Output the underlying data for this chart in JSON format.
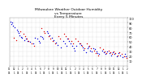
{
  "title": "Milwaukee Weather Outdoor Humidity\nvs Temperature\nEvery 5 Minutes",
  "title_fontsize": 3.2,
  "background_color": "#ffffff",
  "grid_color": "#bbbbbb",
  "blue_color": "#0000dd",
  "red_color": "#dd0000",
  "xlim": [
    0,
    130
  ],
  "ylim": [
    0,
    100
  ],
  "yticks_right": [
    10,
    20,
    30,
    40,
    50,
    60,
    70,
    80,
    90,
    100
  ],
  "ytick_fontsize": 2.5,
  "xtick_fontsize": 2.0,
  "blue_x": [
    2,
    4,
    6,
    8,
    9,
    10,
    11,
    13,
    1,
    3,
    14,
    16,
    18,
    20,
    23,
    26,
    28,
    31,
    32,
    33,
    34,
    36,
    37,
    41,
    42,
    44,
    47,
    49,
    51,
    53,
    57,
    59,
    61,
    63,
    64,
    66,
    67,
    69,
    71,
    72,
    74,
    77,
    79,
    81,
    82,
    84,
    86,
    87,
    89,
    91,
    92,
    94,
    96,
    97,
    99,
    102,
    104,
    106,
    108,
    110,
    112,
    114,
    116,
    118,
    120,
    122,
    125,
    127,
    128
  ],
  "blue_y": [
    88,
    84,
    80,
    76,
    72,
    68,
    64,
    60,
    92,
    90,
    58,
    54,
    56,
    52,
    50,
    47,
    58,
    56,
    52,
    49,
    62,
    60,
    57,
    72,
    68,
    63,
    58,
    53,
    48,
    43,
    38,
    52,
    47,
    42,
    57,
    52,
    47,
    42,
    37,
    32,
    42,
    47,
    43,
    38,
    33,
    28,
    37,
    40,
    32,
    30,
    37,
    34,
    30,
    27,
    24,
    32,
    28,
    25,
    30,
    27,
    22,
    28,
    25,
    20,
    26,
    22,
    18,
    24,
    20
  ],
  "red_x": [
    5,
    7,
    12,
    15,
    17,
    19,
    21,
    24,
    27,
    35,
    38,
    39,
    43,
    45,
    48,
    50,
    54,
    56,
    60,
    62,
    65,
    68,
    70,
    73,
    75,
    78,
    80,
    83,
    85,
    88,
    90,
    93,
    95,
    98,
    100,
    103,
    105,
    107,
    109,
    111,
    113,
    115,
    117,
    119,
    121,
    124,
    126,
    129
  ],
  "red_y": [
    58,
    53,
    72,
    67,
    62,
    57,
    52,
    47,
    42,
    78,
    72,
    68,
    62,
    57,
    52,
    47,
    62,
    57,
    67,
    62,
    57,
    52,
    47,
    57,
    52,
    47,
    42,
    37,
    47,
    42,
    37,
    32,
    27,
    22,
    38,
    34,
    30,
    26,
    32,
    28,
    24,
    30,
    26,
    22,
    28,
    24,
    20,
    16
  ],
  "marker_size": 1.0,
  "n_xticks": 28,
  "xtick_months": [
    "11",
    "12",
    "1",
    "2",
    "3",
    "4",
    "5",
    "6",
    "7",
    "8",
    "9",
    "10",
    "11",
    "12",
    "1",
    "2",
    "3",
    "4",
    "5",
    "6",
    "7",
    "8",
    "9",
    "10",
    "11",
    "12",
    "1",
    "2"
  ],
  "xtick_days": [
    "15",
    "1",
    "15",
    "1",
    "15",
    "1",
    "15",
    "1",
    "15",
    "1",
    "15",
    "1",
    "15",
    "1",
    "15",
    "1",
    "15",
    "1",
    "15",
    "1",
    "15",
    "1",
    "15",
    "1",
    "15",
    "1",
    "15",
    "1"
  ]
}
